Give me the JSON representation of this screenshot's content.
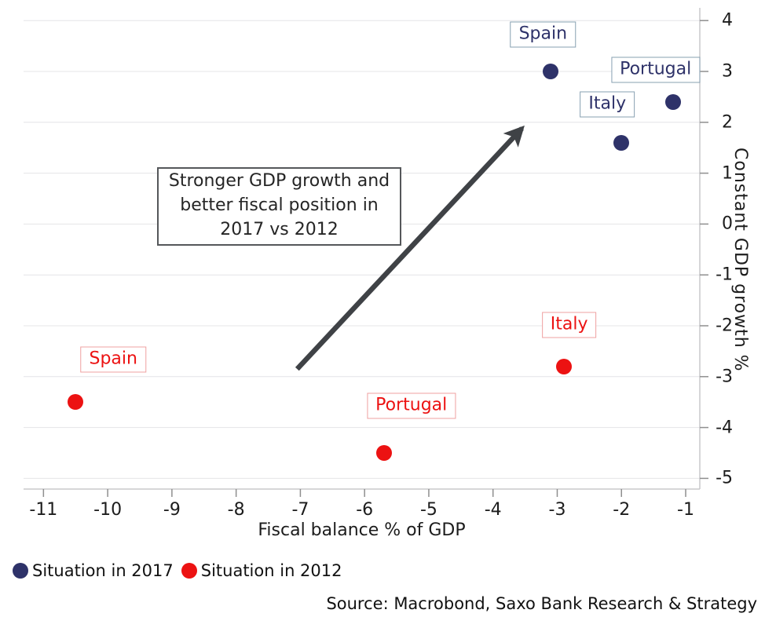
{
  "chart_data": {
    "type": "scatter",
    "title": "",
    "xlabel": "Fiscal balance % of GDP",
    "ylabel": "Constant GDP growth %",
    "xlim": [
      -11.31,
      -0.78
    ],
    "ylim": [
      -5.21,
      4.25
    ],
    "x_ticks": [
      -11,
      -10,
      -9,
      -8,
      -7,
      -6,
      -5,
      -4,
      -3,
      -2,
      -1
    ],
    "y_ticks": [
      4,
      3,
      2,
      1,
      0,
      -1,
      -2,
      -3,
      -4,
      -5
    ],
    "grid": "horizontal-only",
    "legend_position": "bottom-left",
    "series": [
      {
        "name": "Situation in 2017",
        "color": "#2e3269",
        "label_border_color": "#87a0b2",
        "points": [
          {
            "label": "Spain",
            "x": -3.1,
            "y": 3.0
          },
          {
            "label": "Portugal",
            "x": -1.2,
            "y": 2.4
          },
          {
            "label": "Italy",
            "x": -2.0,
            "y": 1.6
          }
        ]
      },
      {
        "name": "Situation in 2012",
        "color": "#ec1212",
        "label_border_color": "#efa0a0",
        "points": [
          {
            "label": "Spain",
            "x": -10.5,
            "y": -3.5
          },
          {
            "label": "Portugal",
            "x": -5.7,
            "y": -4.5
          },
          {
            "label": "Italy",
            "x": -2.9,
            "y": -2.8
          }
        ]
      }
    ],
    "annotation": {
      "text": "Stronger GDP growth and\nbetter fiscal position in\n2017 vs 2012",
      "arrow": {
        "x1": -7.05,
        "y1": -2.85,
        "x2": -3.55,
        "y2": 1.88
      }
    }
  },
  "source": "Source: Macrobond, Saxo Bank Research & Strategy",
  "colors": {
    "arrow": "#3f4246",
    "gridline": "#e4e4e7",
    "axis_line": "#c8c8cb",
    "tick": "#8f8f8f"
  }
}
